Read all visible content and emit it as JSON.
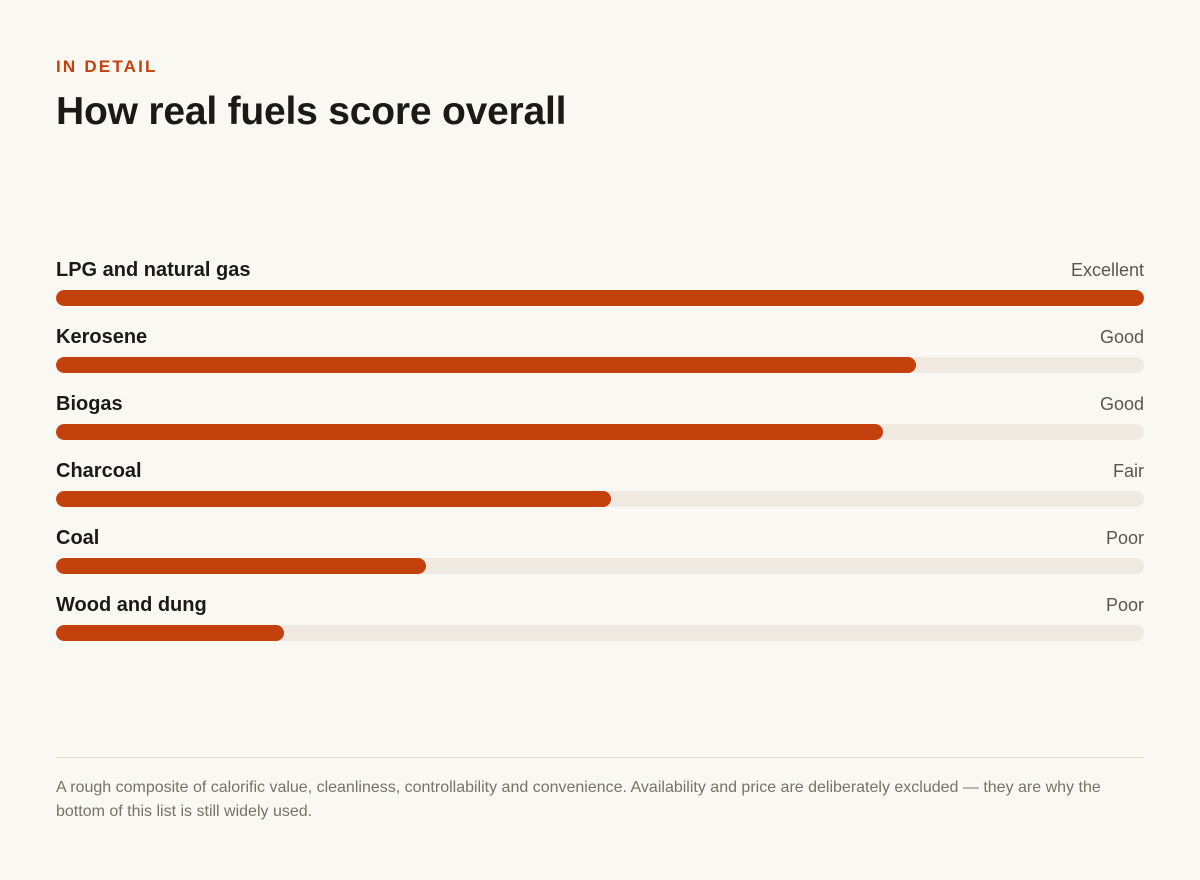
{
  "header": {
    "eyebrow": "IN DETAIL",
    "title": "How real fuels score overall"
  },
  "colors": {
    "accent": "#c2410c",
    "track": "#efe9e1",
    "background": "#faf8f3"
  },
  "chart_data": {
    "type": "bar",
    "orientation": "horizontal",
    "categories": [
      "LPG and natural gas",
      "Kerosene",
      "Biogas",
      "Charcoal",
      "Coal",
      "Wood and dung"
    ],
    "values": [
      1.0,
      0.79,
      0.76,
      0.51,
      0.34,
      0.21
    ],
    "ratings": [
      "Excellent",
      "Good",
      "Good",
      "Fair",
      "Poor",
      "Poor"
    ],
    "xlim": [
      0,
      1
    ],
    "grid": false
  },
  "footnote": "A rough composite of calorific value, cleanliness, controllability and convenience. Availability and price are deliberately excluded — they are why the bottom of this list is still widely used."
}
